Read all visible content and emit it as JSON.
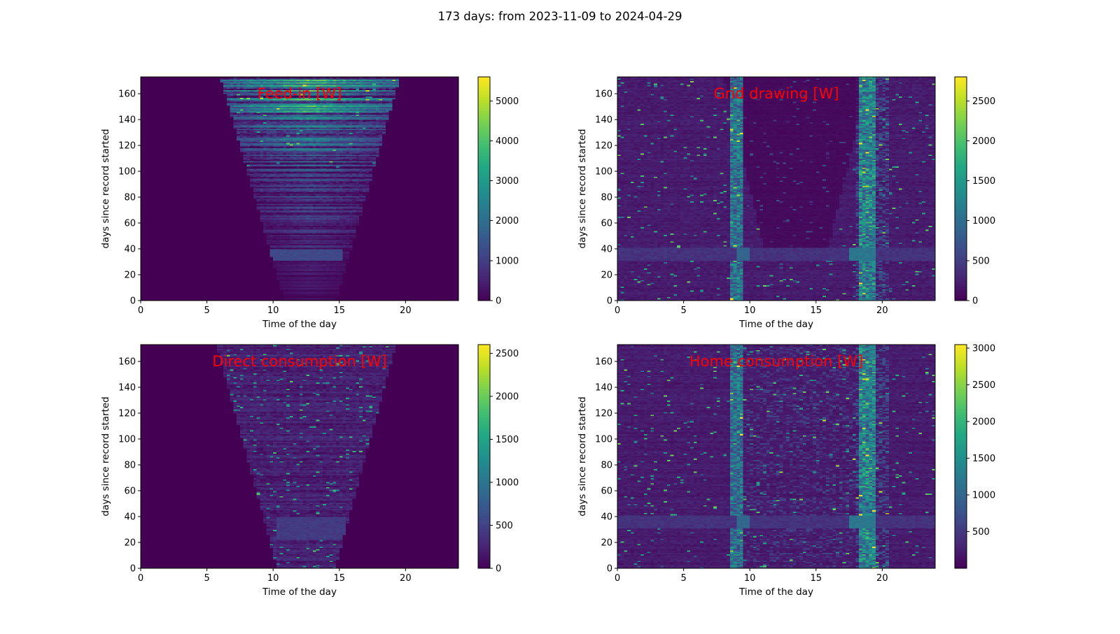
{
  "figure": {
    "suptitle": "173 days: from 2023-11-09 to 2024-04-29"
  },
  "chart_data": [
    {
      "type": "heatmap",
      "title": "Feed-in [W]",
      "xlabel": "Time of the day",
      "ylabel": "days since record started",
      "xlim": [
        0,
        24
      ],
      "ylim": [
        0,
        173
      ],
      "xticks": [
        0,
        5,
        10,
        15,
        20
      ],
      "yticks": [
        0,
        20,
        40,
        60,
        80,
        100,
        120,
        140,
        160
      ],
      "colorbar": {
        "min": 0,
        "max": 5600,
        "ticks": [
          0,
          1000,
          2000,
          3000,
          4000,
          5000
        ]
      },
      "colormap": "viridis",
      "pattern": "daylight"
    },
    {
      "type": "heatmap",
      "title": "Grid drawing [W]",
      "xlabel": "Time of the day",
      "ylabel": "days since record started",
      "xlim": [
        0,
        24
      ],
      "ylim": [
        0,
        173
      ],
      "xticks": [
        0,
        5,
        10,
        15,
        20
      ],
      "yticks": [
        0,
        20,
        40,
        60,
        80,
        100,
        120,
        140,
        160
      ],
      "colorbar": {
        "min": 0,
        "max": 2800,
        "ticks": [
          0,
          500,
          1000,
          1500,
          2000,
          2500
        ]
      },
      "colormap": "viridis",
      "pattern": "grid"
    },
    {
      "type": "heatmap",
      "title": "Direct consumption [W]",
      "xlabel": "Time of the day",
      "ylabel": "days since record started",
      "xlim": [
        0,
        24
      ],
      "ylim": [
        0,
        173
      ],
      "xticks": [
        0,
        5,
        10,
        15,
        20
      ],
      "yticks": [
        0,
        20,
        40,
        60,
        80,
        100,
        120,
        140,
        160
      ],
      "colorbar": {
        "min": 0,
        "max": 2600,
        "ticks": [
          0,
          500,
          1000,
          1500,
          2000,
          2500
        ]
      },
      "colormap": "viridis",
      "pattern": "direct"
    },
    {
      "type": "heatmap",
      "title": "Home consumption [W]",
      "xlabel": "Time of the day",
      "ylabel": "days since record started",
      "xlim": [
        0,
        24
      ],
      "ylim": [
        0,
        173
      ],
      "xticks": [
        0,
        5,
        10,
        15,
        20
      ],
      "yticks": [
        0,
        20,
        40,
        60,
        80,
        100,
        120,
        140,
        160
      ],
      "colorbar": {
        "min": 0,
        "max": 3050,
        "ticks": [
          500,
          1000,
          1500,
          2000,
          2500,
          3000
        ]
      },
      "colormap": "viridis",
      "pattern": "home"
    }
  ]
}
